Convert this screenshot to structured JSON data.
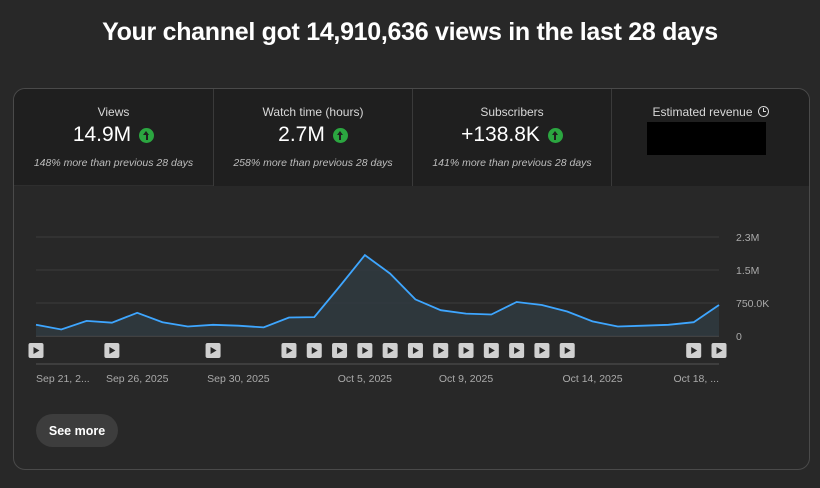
{
  "headline": "Your channel got 14,910,636 views in the last 28 days",
  "metrics": [
    {
      "label": "Views",
      "value": "14.9M",
      "change": "148% more than previous 28 days",
      "trend": "up"
    },
    {
      "label": "Watch time (hours)",
      "value": "2.7M",
      "change": "258% more than previous 28 days",
      "trend": "up"
    },
    {
      "label": "Subscribers",
      "value": "+138.8K",
      "change": "141% more than previous 28 days",
      "trend": "up"
    },
    {
      "label": "Estimated revenue",
      "value": "",
      "change": "",
      "trend": "hidden"
    }
  ],
  "see_more": "See more",
  "colors": {
    "line": "#3ea6ff",
    "up": "#2ba640"
  },
  "chart_data": {
    "type": "area",
    "title": "Views",
    "y_ticks": [
      "2.3M",
      "1.5M",
      "750.0K",
      "0"
    ],
    "ylim": [
      0,
      2300000
    ],
    "x_labels": [
      "Sep 21, 2...",
      "Sep 26, 2025",
      "Sep 30, 2025",
      "Oct 5, 2025",
      "Oct 9, 2025",
      "Oct 14, 2025",
      "Oct 18, ..."
    ],
    "x_label_days": [
      0,
      4,
      8,
      13,
      17,
      22,
      26
    ],
    "values": [
      260000,
      150000,
      350000,
      310000,
      540000,
      320000,
      220000,
      260000,
      240000,
      200000,
      430000,
      440000,
      1150000,
      1880000,
      1450000,
      850000,
      600000,
      520000,
      500000,
      790000,
      720000,
      570000,
      340000,
      220000,
      240000,
      260000,
      320000,
      720000
    ],
    "video_markers": [
      0,
      3,
      7,
      10,
      11,
      12,
      13,
      14,
      15,
      16,
      17,
      18,
      19,
      20,
      21,
      26,
      27
    ]
  }
}
